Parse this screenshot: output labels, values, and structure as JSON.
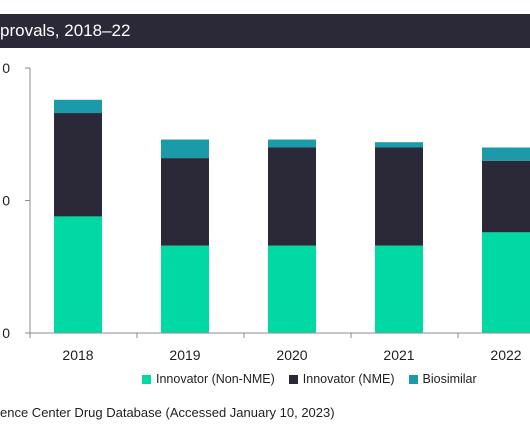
{
  "title": "provals, 2018–22",
  "source": "ence Center Drug Database (Accessed January 10, 2023)",
  "chart_data": {
    "type": "bar",
    "stacked": true,
    "categories": [
      "2018",
      "2019",
      "2020",
      "2021",
      "2022"
    ],
    "series": [
      {
        "name": "Innovator (Non-NME)",
        "color": "#00d9a3",
        "values": [
          44,
          33,
          33,
          33,
          38
        ]
      },
      {
        "name": "Innovator (NME)",
        "color": "#2b2838",
        "values": [
          39,
          33,
          37,
          37,
          27
        ]
      },
      {
        "name": "Biosimilar",
        "color": "#1b9aaa",
        "values": [
          5,
          7,
          3,
          2,
          5
        ]
      }
    ],
    "y_tick_labels": [
      "0",
      "0",
      "0"
    ],
    "ylim": [
      0,
      100
    ],
    "grid": false,
    "legend_position": "bottom"
  }
}
